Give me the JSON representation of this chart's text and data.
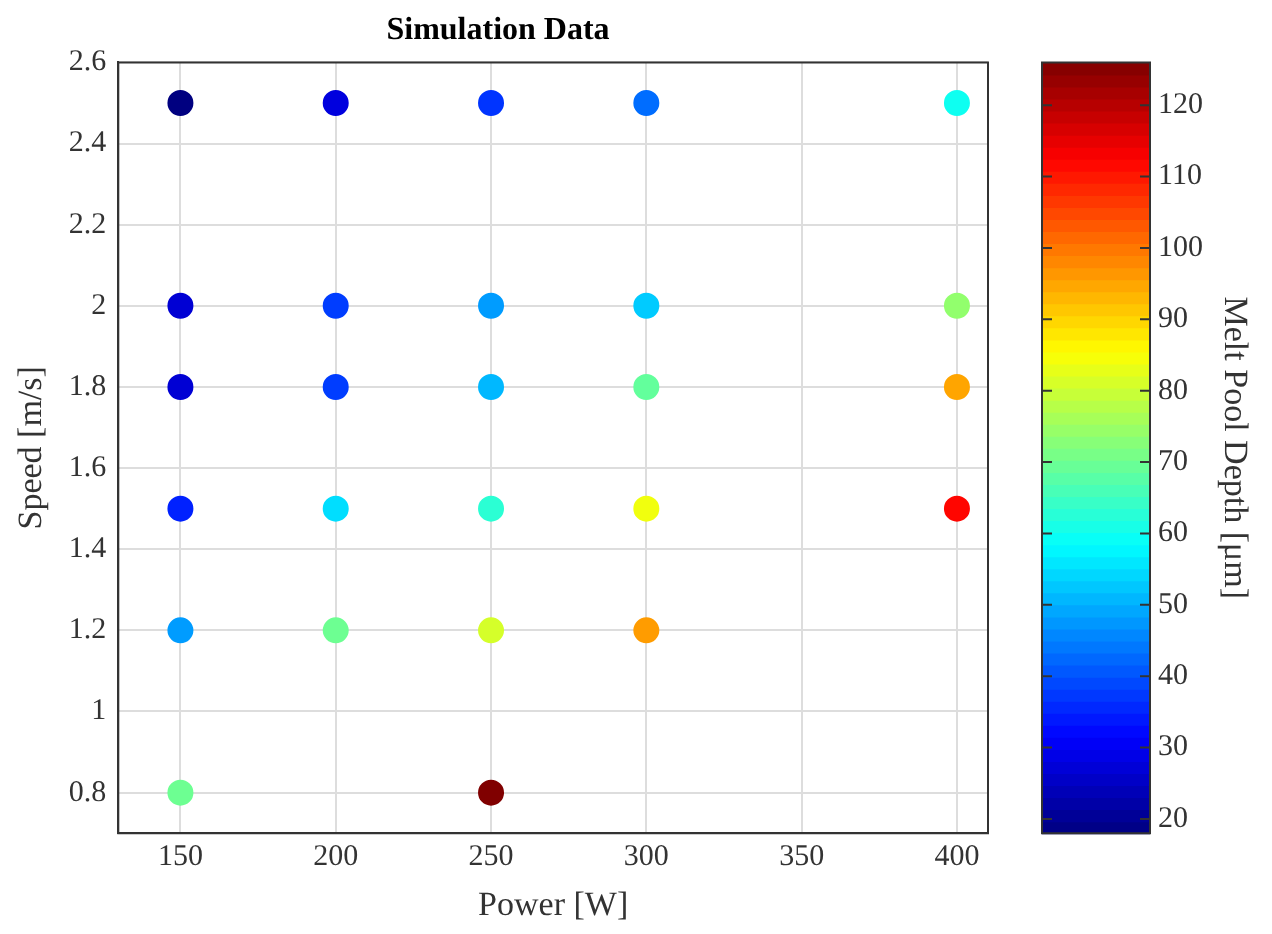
{
  "chart_data": {
    "type": "scatter",
    "title": "Simulation Data",
    "xlabel": "Power [W]",
    "ylabel": "Speed [m/s]",
    "clabel": "Melt Pool Depth [μm]",
    "x": [
      150,
      200,
      250,
      300,
      400,
      150,
      200,
      250,
      300,
      400,
      150,
      200,
      250,
      300,
      400,
      150,
      200,
      250,
      300,
      400,
      150,
      200,
      250,
      300,
      150,
      250
    ],
    "values": [
      2.5,
      2.5,
      2.5,
      2.5,
      2.5,
      2,
      2,
      2,
      2,
      2,
      1.8,
      1.8,
      1.8,
      1.8,
      1.8,
      1.5,
      1.5,
      1.5,
      1.5,
      1.5,
      1.2,
      1.2,
      1.2,
      1.2,
      0.8,
      0.8
    ],
    "cvalues": [
      18,
      28,
      37,
      43,
      60,
      27,
      38,
      48,
      53,
      74,
      27,
      38,
      51,
      69,
      95,
      35,
      55,
      63,
      84,
      112,
      48,
      70,
      81,
      96,
      70,
      126
    ],
    "xlim": [
      130,
      410
    ],
    "xticks": [
      150,
      200,
      250,
      300,
      350,
      400
    ],
    "ylim": [
      0.7,
      2.6
    ],
    "yticks": [
      0.8,
      1,
      1.2,
      1.4,
      1.6,
      1.8,
      2,
      2.2,
      2.4,
      2.6
    ],
    "clim": [
      18,
      126
    ],
    "cticks": [
      20,
      30,
      40,
      50,
      60,
      70,
      80,
      90,
      100,
      110,
      120
    ],
    "grid": true,
    "marker": "circle",
    "legend": false
  }
}
